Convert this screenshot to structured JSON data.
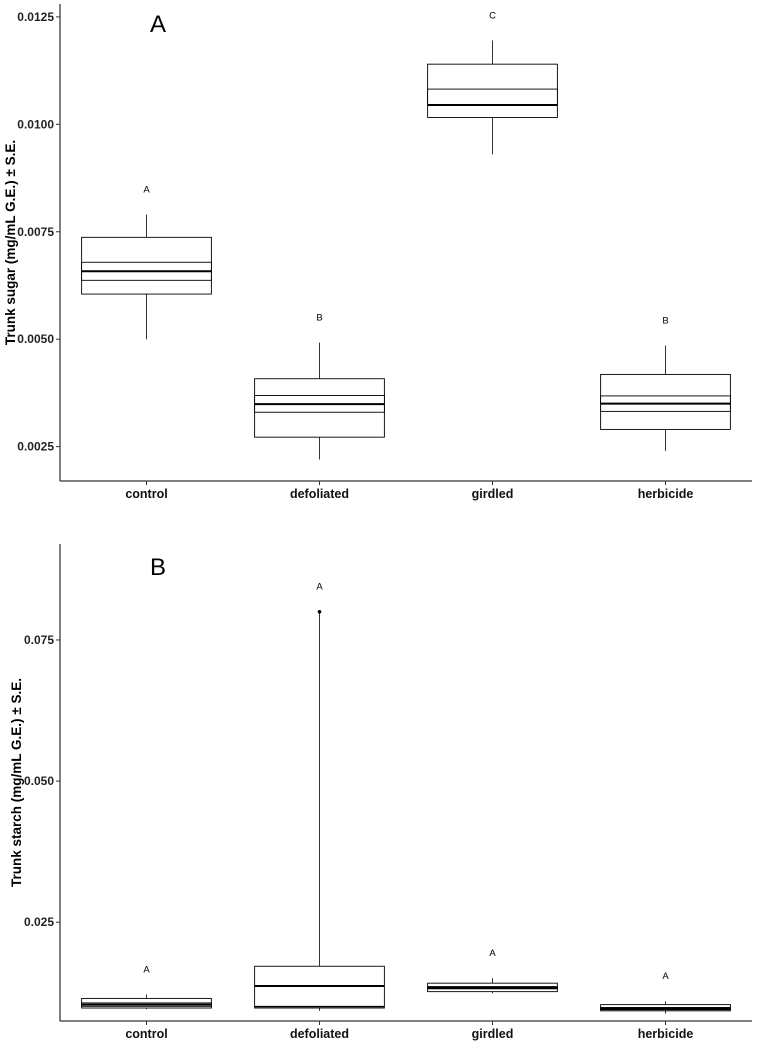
{
  "chart_data": [
    {
      "type": "box",
      "panel_letter": "A",
      "title": "",
      "xlabel": "",
      "ylabel": "Trunk sugar (mg/mL G.E.) ± S.E.",
      "categories": [
        "control",
        "defoliated",
        "girdled",
        "herbicide"
      ],
      "ylim": [
        0.0017,
        0.0128
      ],
      "yticks": [
        0.0025,
        0.005,
        0.0075,
        0.01,
        0.0125
      ],
      "ytick_labels": [
        "0.0025",
        "0.0050",
        "0.0075",
        "0.0100",
        "0.0125"
      ],
      "boxes": [
        {
          "category": "control",
          "whisker_low": 0.005,
          "q1": 0.00605,
          "median": 0.00658,
          "q3": 0.00737,
          "whisker_high": 0.0079,
          "se_low": 0.00637,
          "se_high": 0.00679,
          "letter": "A"
        },
        {
          "category": "defoliated",
          "whisker_low": 0.0022,
          "q1": 0.00272,
          "median": 0.00349,
          "q3": 0.00408,
          "whisker_high": 0.00492,
          "se_low": 0.0033,
          "se_high": 0.00369,
          "letter": "B"
        },
        {
          "category": "girdled",
          "whisker_low": 0.0093,
          "q1": 0.01016,
          "median": 0.01045,
          "q3": 0.0114,
          "whisker_high": 0.01195,
          "se_low": 0.01045,
          "se_high": 0.01082,
          "letter": "C"
        },
        {
          "category": "herbicide",
          "whisker_low": 0.0024,
          "q1": 0.0029,
          "median": 0.0035,
          "q3": 0.00418,
          "whisker_high": 0.00485,
          "se_low": 0.00332,
          "se_high": 0.00368,
          "letter": "B"
        }
      ],
      "grid": false,
      "legend": "none"
    },
    {
      "type": "box",
      "panel_letter": "B",
      "title": "",
      "xlabel": "",
      "ylabel": "Trunk starch (mg/mL G.E.) ± S.E.",
      "categories": [
        "control",
        "defoliated",
        "girdled",
        "herbicide"
      ],
      "ylim": [
        0.0075,
        0.092
      ],
      "yticks": [
        0.025,
        0.05,
        0.075
      ],
      "ytick_labels": [
        "0.025",
        "0.050",
        "0.075"
      ],
      "boxes": [
        {
          "category": "control",
          "whisker_low": 0.0096,
          "q1": 0.0098,
          "median": 0.0104,
          "q3": 0.0115,
          "whisker_high": 0.0122,
          "se_low": 0.0101,
          "se_high": 0.0107,
          "letter": "A"
        },
        {
          "category": "defoliated",
          "whisker_low": 0.0093,
          "q1": 0.0101,
          "median": 0.0137,
          "q3": 0.0172,
          "whisker_high": 0.08,
          "se_low": 0.0098,
          "se_high": 0.01,
          "outliers": [
            0.08
          ],
          "letter": "A"
        },
        {
          "category": "girdled",
          "whisker_low": 0.0124,
          "q1": 0.0127,
          "median": 0.0134,
          "q3": 0.0142,
          "whisker_high": 0.0151,
          "se_low": 0.0132,
          "se_high": 0.0136,
          "letter": "A"
        },
        {
          "category": "herbicide",
          "whisker_low": 0.0088,
          "q1": 0.0093,
          "median": 0.0097,
          "q3": 0.0104,
          "whisker_high": 0.011,
          "se_low": 0.0095,
          "se_high": 0.0099,
          "letter": "A"
        }
      ],
      "grid": false,
      "legend": "none"
    }
  ]
}
